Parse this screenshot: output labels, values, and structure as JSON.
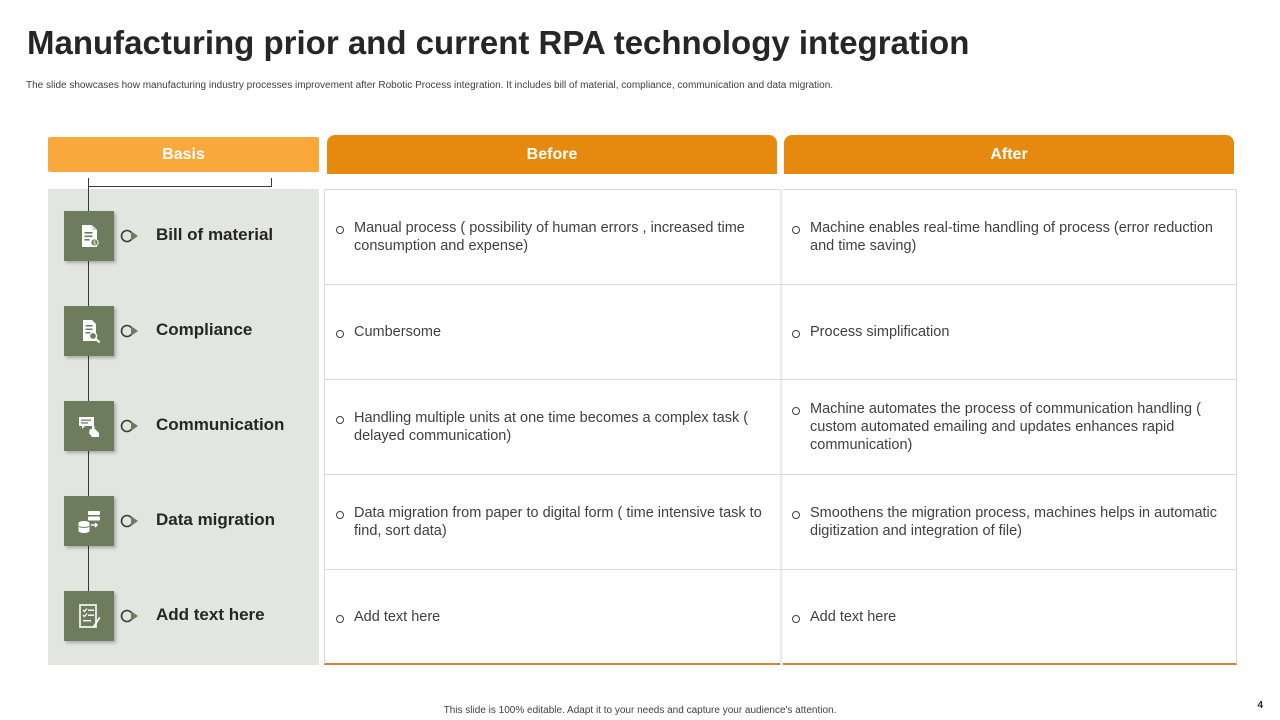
{
  "slide": {
    "title": "Manufacturing prior and current RPA technology integration",
    "subtitle": "The slide showcases how manufacturing industry processes improvement after Robotic Process integration. It includes bill of material, compliance, communication and data migration.",
    "footer": "This slide is 100% editable. Adapt it to your needs and capture your audience's attention.",
    "page_number": "4"
  },
  "headers": {
    "basis": "Basis",
    "before": "Before",
    "after": "After"
  },
  "rows": [
    {
      "icon": "document-money-icon",
      "basis": "Bill of material",
      "before": "Manual process ( possibility of human errors , increased time consumption and expense)",
      "after": "Machine enables real-time handling of process (error reduction and time saving)"
    },
    {
      "icon": "document-search-icon",
      "basis": "Compliance",
      "before": "Cumbersome",
      "after": "Process simplification"
    },
    {
      "icon": "chat-hand-icon",
      "basis": "Communication",
      "before": "Handling multiple units at one time becomes a complex task ( delayed communication)",
      "after": "Machine automates the process of communication handling ( custom automated emailing and updates enhances rapid communication)"
    },
    {
      "icon": "data-transfer-icon",
      "basis": "Data migration",
      "before": "Data migration from paper to digital form ( time intensive task to find, sort data)",
      "after": "Smoothens the migration process, machines helps in automatic digitization and integration of file)"
    },
    {
      "icon": "checklist-icon",
      "basis": "Add text here",
      "before": "Add text here",
      "after": "Add text here"
    }
  ],
  "colors": {
    "basis_header": "#F9A93C",
    "column_header": "#E58A0F",
    "icon_box": "#6E7C5E",
    "basis_panel": "#E3E5E0"
  }
}
